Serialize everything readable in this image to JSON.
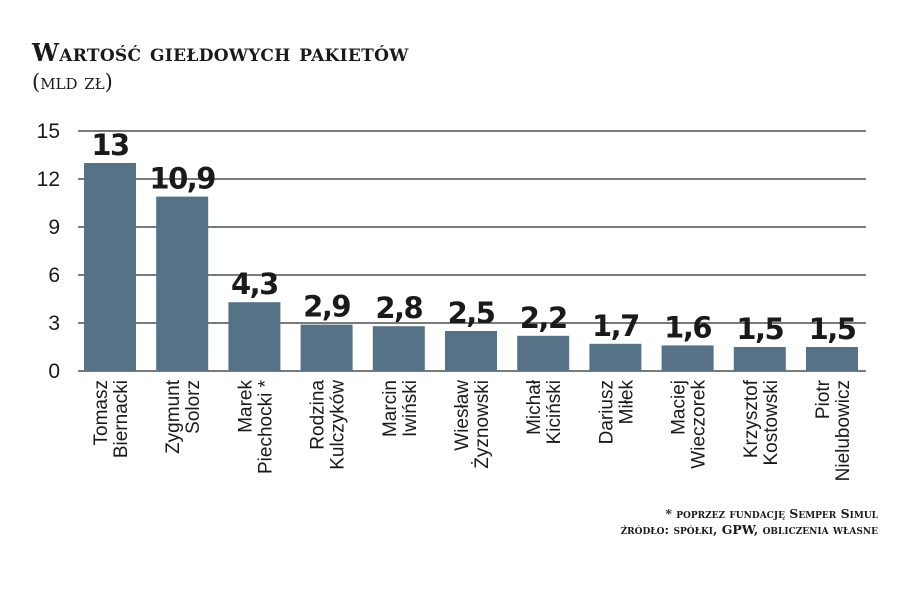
{
  "title": "Wartość giełdowych pakietów",
  "subtitle": "(mld zł)",
  "notes": {
    "footnote": "* poprzez fundację Semper Simul",
    "source": "źródło: spółki, GPW, obliczenia własne"
  },
  "colors": {
    "bar": "#567287",
    "gridline": "#2b2b2b",
    "text": "#1a1a1a"
  },
  "chart_data": {
    "type": "bar",
    "categories": [
      [
        "Tomasz",
        "Biernacki"
      ],
      [
        "Zygmunt",
        "Solorz"
      ],
      [
        "Marek",
        "Piechocki *"
      ],
      [
        "Rodzina",
        "Kulczyków"
      ],
      [
        "Marcin",
        "Iwiński"
      ],
      [
        "Wiesław",
        "Żyznowski"
      ],
      [
        "Michał",
        "Kiciński"
      ],
      [
        "Dariusz",
        "Miłek"
      ],
      [
        "Maciej",
        "Wieczorek"
      ],
      [
        "Krzysztof",
        "Kostowski"
      ],
      [
        "Piotr",
        "Nielubowicz"
      ]
    ],
    "values": [
      13,
      10.9,
      4.3,
      2.9,
      2.8,
      2.5,
      2.2,
      1.7,
      1.6,
      1.5,
      1.5
    ],
    "value_labels": [
      "13",
      "10,9",
      "4,3",
      "2,9",
      "2,8",
      "2,5",
      "2,2",
      "1,7",
      "1,6",
      "1,5",
      "1,5"
    ],
    "y_ticks": [
      0,
      3,
      6,
      9,
      12,
      15
    ],
    "ylim": [
      0,
      15
    ],
    "grid": true,
    "legend": "none"
  }
}
